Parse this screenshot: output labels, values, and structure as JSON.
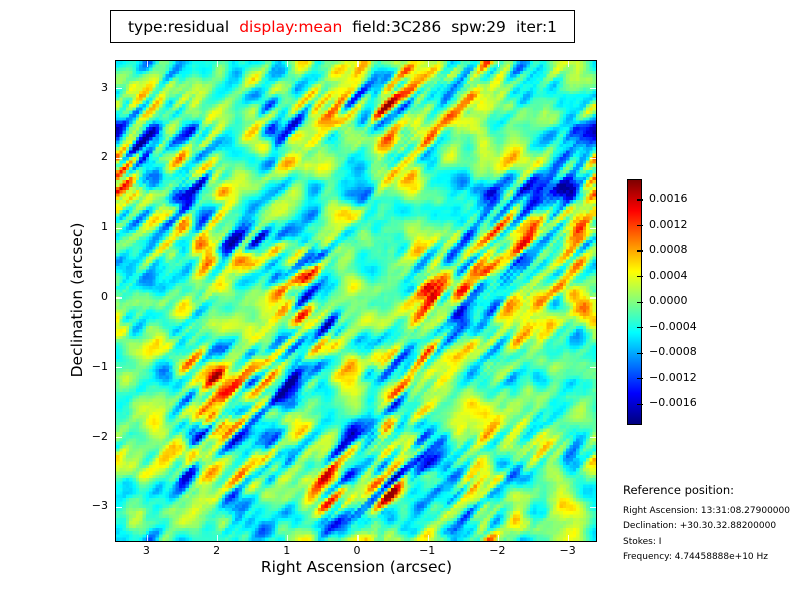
{
  "title": {
    "segments": [
      {
        "text": "type:residual",
        "color": "#000000"
      },
      {
        "text": "display:mean",
        "color": "#ff0000"
      },
      {
        "text": "field:3C286",
        "color": "#000000"
      },
      {
        "text": "spw:29",
        "color": "#000000"
      },
      {
        "text": "iter:1",
        "color": "#000000"
      }
    ]
  },
  "chart_data": {
    "type": "heatmap",
    "title": "type:residual display:mean field:3C286 spw:29 iter:1",
    "xlabel": "Right Ascension (arcsec)",
    "ylabel": "Declination (arcsec)",
    "x_axis": {
      "ticks": [
        3,
        2,
        1,
        0,
        -1,
        -2,
        -3
      ],
      "labels": [
        "3",
        "2",
        "1",
        "0",
        "−1",
        "−2",
        "−3"
      ],
      "range": [
        3.45,
        -3.45
      ]
    },
    "y_axis": {
      "ticks": [
        3,
        2,
        1,
        0,
        -1,
        -2,
        -3
      ],
      "labels": [
        "3",
        "2",
        "1",
        "0",
        "−1",
        "−2",
        "−3"
      ],
      "range": [
        -3.45,
        3.45
      ]
    },
    "colormap": "jet",
    "colorbar": {
      "tick_labels": [
        "0.0016",
        "0.0012",
        "0.0008",
        "0.0004",
        "0.0000",
        "−0.0004",
        "−0.0008",
        "−0.0012",
        "−0.0016"
      ],
      "vmin": -0.0019,
      "vmax": 0.0019
    },
    "content": "residual noise map: correlated speckle noise with diagonal (up-right ~45°) streaks on a cyan-green background with orange/red and blue extrema",
    "noise_model": {
      "seed": 1333108,
      "grid": 145,
      "streak_half_length": 6,
      "base_level": 0.465,
      "contrast": 0.135
    }
  },
  "reference": {
    "heading": "Reference position:",
    "lines": [
      "Right Ascension: 13:31:08.27900000",
      "Declination: +30.30.32.88200000",
      "Stokes: I",
      "Frequency: 4.74458888e+10 Hz"
    ]
  }
}
